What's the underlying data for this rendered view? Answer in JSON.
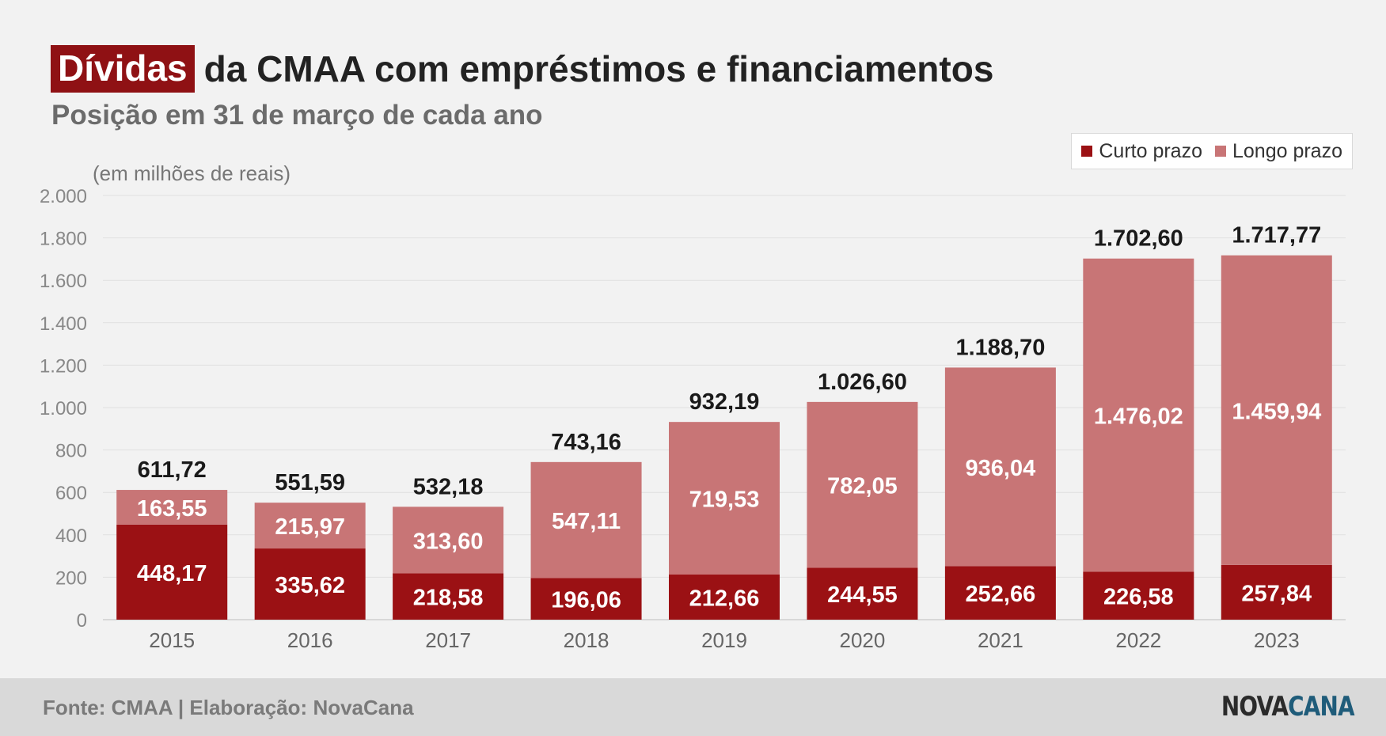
{
  "header": {
    "title_highlight": "Dívidas",
    "title_rest": "da CMAA com empréstimos e financiamentos",
    "subtitle": "Posição em 31 de março de cada ano"
  },
  "legend": {
    "short_term": "Curto prazo",
    "long_term": "Longo prazo"
  },
  "unit_label": "(em milhões de reais)",
  "footer": {
    "source": "Fonte: CMAA | Elaboração: NovaCana",
    "logo_part1": "NOVA",
    "logo_part2": "CANA"
  },
  "colors": {
    "short_term": "#9b1114",
    "long_term": "#c87576",
    "highlight": "#8f1114",
    "logo_accent": "#1f5c7a"
  },
  "chart_data": {
    "type": "bar",
    "stacked": true,
    "categories": [
      "2015",
      "2016",
      "2017",
      "2018",
      "2019",
      "2020",
      "2021",
      "2022",
      "2023"
    ],
    "series": [
      {
        "name": "Curto prazo",
        "values": [
          448.17,
          335.62,
          218.58,
          196.06,
          212.66,
          244.55,
          252.66,
          226.58,
          257.84
        ],
        "labels": [
          "448,17",
          "335,62",
          "218,58",
          "196,06",
          "212,66",
          "244,55",
          "252,66",
          "226,58",
          "257,84"
        ]
      },
      {
        "name": "Longo prazo",
        "values": [
          163.55,
          215.97,
          313.6,
          547.11,
          719.53,
          782.05,
          936.04,
          1476.02,
          1459.94
        ],
        "labels": [
          "163,55",
          "215,97",
          "313,60",
          "547,11",
          "719,53",
          "782,05",
          "936,04",
          "1.476,02",
          "1.459,94"
        ]
      }
    ],
    "totals": [
      611.72,
      551.59,
      532.18,
      743.16,
      932.19,
      1026.6,
      1188.7,
      1702.6,
      1717.77
    ],
    "total_labels": [
      "611,72",
      "551,59",
      "532,18",
      "743,16",
      "932,19",
      "1.026,60",
      "1.188,70",
      "1.702,60",
      "1.717,77"
    ],
    "ylim": [
      0,
      2000
    ],
    "yticks": [
      0,
      200,
      400,
      600,
      800,
      1000,
      1200,
      1400,
      1600,
      1800,
      2000
    ],
    "ytick_labels": [
      "0",
      "200",
      "400",
      "600",
      "800",
      "1.000",
      "1.200",
      "1.400",
      "1.600",
      "1.800",
      "2.000"
    ],
    "grid": true,
    "legend_position": "top-right"
  }
}
